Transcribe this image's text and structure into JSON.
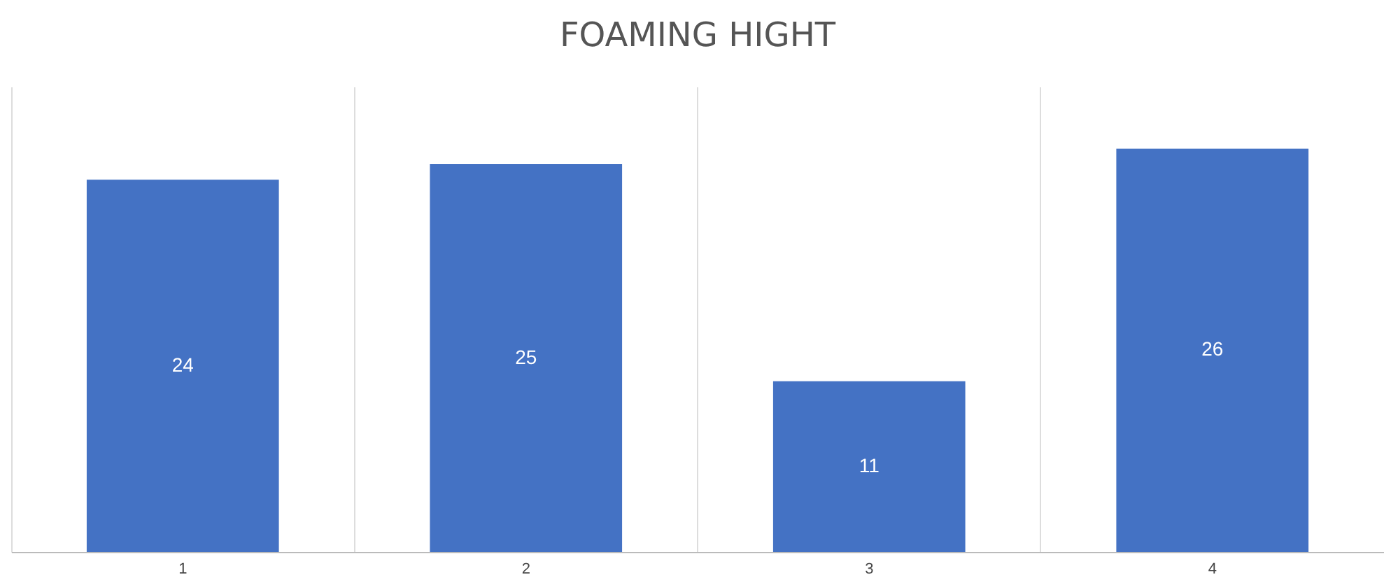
{
  "chart_data": {
    "type": "bar",
    "title": "FOAMING HIGHT",
    "categories": [
      "1",
      "2",
      "3",
      "4"
    ],
    "values": [
      24,
      25,
      11,
      26
    ],
    "color": "#4472c4",
    "data_labels": true,
    "grid": "x"
  }
}
